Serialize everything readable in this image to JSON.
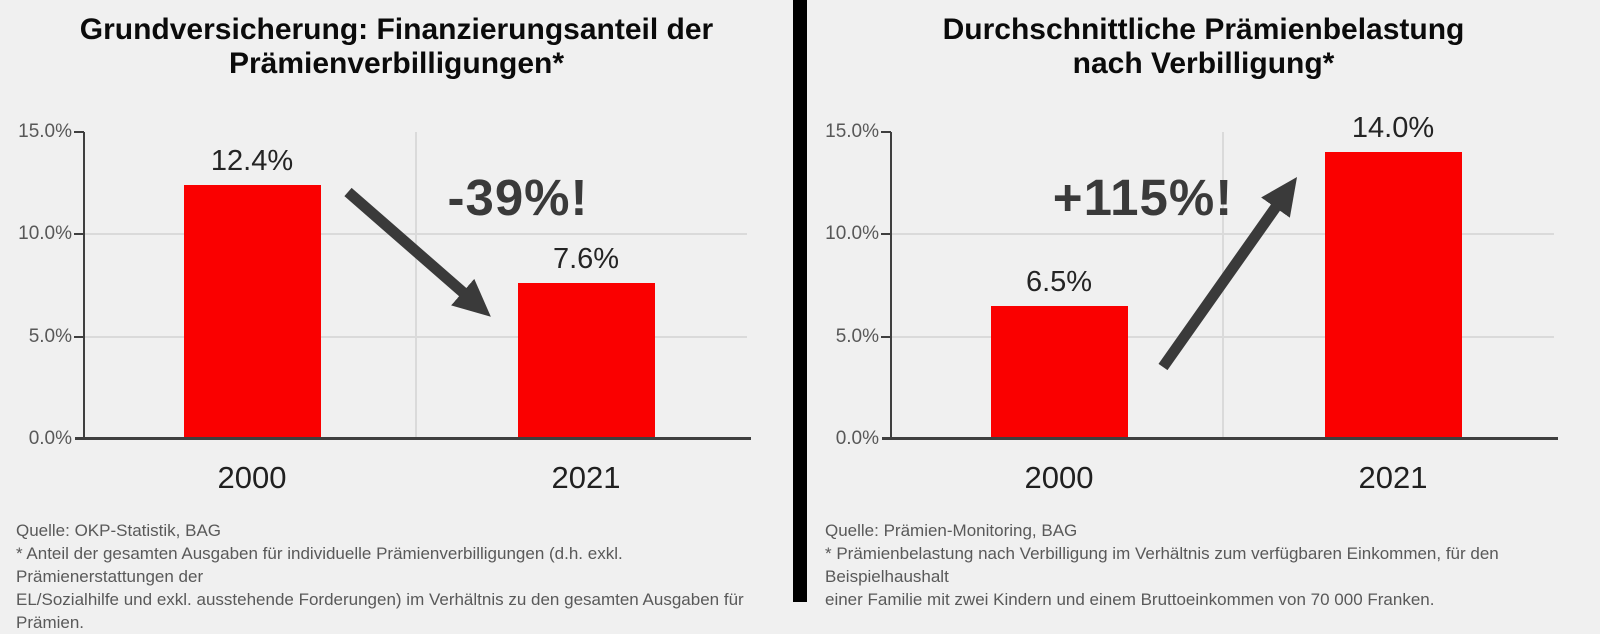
{
  "page": {
    "background_color": "#f0f0f0",
    "divider_color": "#000000"
  },
  "chart_data": [
    {
      "type": "bar",
      "title": "Grundversicherung: Finanzierungsanteil der\nPrämienverbilligungen*",
      "categories": [
        "2000",
        "2021"
      ],
      "values": [
        12.4,
        7.6
      ],
      "value_labels": [
        "12.4%",
        "7.6%"
      ],
      "yticks": [
        "15.0%",
        "10.0%",
        "5.0%",
        "0.0%"
      ],
      "ylim": [
        0,
        15
      ],
      "xlabel": "",
      "ylabel": "",
      "grid": true,
      "legend": false,
      "bar_color": "#fa0000",
      "annotation": "-39%!",
      "annotation_color": "#3a3a3a",
      "arrow_direction": "down-right",
      "source": "Quelle: OKP-Statistik, BAG",
      "footnote": "* Anteil der gesamten Ausgaben für individuelle Prämienverbilligungen (d.h. exkl. Prämienerstattungen der\nEL/Sozialhilfe und exkl. ausstehende Forderungen) im Verhältnis zu den gesamten Ausgaben für Prämien."
    },
    {
      "type": "bar",
      "title": "Durchschnittliche Prämienbelastung\nnach Verbilligung*",
      "categories": [
        "2000",
        "2021"
      ],
      "values": [
        6.5,
        14.0
      ],
      "value_labels": [
        "6.5%",
        "14.0%"
      ],
      "yticks": [
        "15.0%",
        "10.0%",
        "5.0%",
        "0.0%"
      ],
      "ylim": [
        0,
        15
      ],
      "xlabel": "",
      "ylabel": "",
      "grid": true,
      "legend": false,
      "bar_color": "#fa0000",
      "annotation": "+115%!",
      "annotation_color": "#3a3a3a",
      "arrow_direction": "up-right",
      "source": "Quelle: Prämien-Monitoring, BAG",
      "footnote": "* Prämienbelastung nach Verbilligung im Verhältnis zum verfügbaren Einkommen, für den Beispielhaushalt\neiner Familie mit zwei Kindern und einem Bruttoeinkommen von 70 000 Franken."
    }
  ]
}
